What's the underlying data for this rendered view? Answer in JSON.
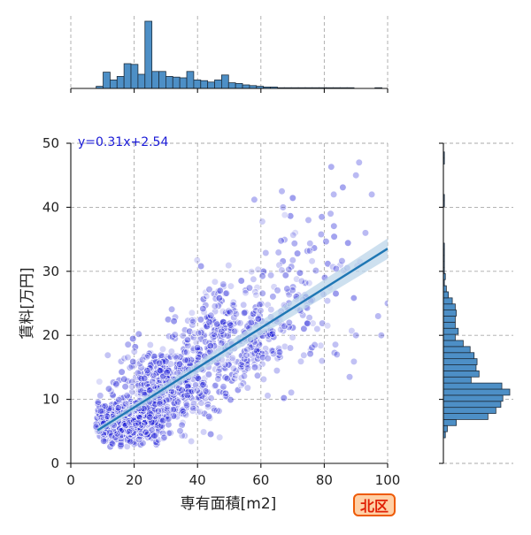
{
  "chart_data": {
    "type": "scatter",
    "subtype": "jointplot_with_regression",
    "xlabel": "専有面積[m2]",
    "ylabel": "賃料[万円]",
    "xlim": [
      0,
      100
    ],
    "ylim": [
      0,
      50
    ],
    "x_ticks": [
      0,
      20,
      40,
      60,
      80,
      100
    ],
    "y_ticks": [
      0,
      10,
      20,
      30,
      40,
      50
    ],
    "grid": true,
    "regression": {
      "label": "y=0.31x+2.54",
      "slope": 0.31,
      "intercept": 2.54,
      "x_range": [
        8.5,
        100
      ],
      "line_color": "#1f77b4",
      "ci_color": "#bcd6ea"
    },
    "scatter": {
      "color": "#1a1ad6",
      "approx_point_count": 1600,
      "clusters": [
        {
          "x_mean": 17,
          "x_sd": 5,
          "y_mean": 6.5,
          "y_sd": 1.6,
          "weight": 0.4
        },
        {
          "x_mean": 30,
          "x_sd": 7,
          "y_mean": 11.5,
          "y_sd": 3.2,
          "weight": 0.3
        },
        {
          "x_mean": 50,
          "x_sd": 9,
          "y_mean": 19,
          "y_sd": 4.5,
          "weight": 0.22
        },
        {
          "x_mean": 72,
          "x_sd": 10,
          "y_mean": 27,
          "y_sd": 6.5,
          "weight": 0.08
        }
      ],
      "outliers": [
        {
          "x": 91,
          "y": 47
        },
        {
          "x": 90,
          "y": 45
        },
        {
          "x": 95,
          "y": 42
        },
        {
          "x": 83,
          "y": 42
        },
        {
          "x": 75,
          "y": 38
        },
        {
          "x": 82,
          "y": 39
        },
        {
          "x": 67,
          "y": 40
        },
        {
          "x": 93,
          "y": 36
        },
        {
          "x": 100,
          "y": 25
        },
        {
          "x": 97,
          "y": 23
        },
        {
          "x": 88,
          "y": 13.5
        },
        {
          "x": 98,
          "y": 20
        },
        {
          "x": 90,
          "y": 20
        },
        {
          "x": 77,
          "y": 18.5
        },
        {
          "x": 84,
          "y": 17
        }
      ]
    },
    "x_histogram": {
      "bin_start": 8,
      "bin_width": 2.2,
      "counts": [
        3,
        23,
        12,
        17,
        35,
        34,
        20,
        95,
        24,
        24,
        17,
        16,
        15,
        24,
        12,
        11,
        9,
        12,
        19,
        8,
        7,
        5,
        4,
        3,
        2,
        2,
        1,
        1,
        1,
        1,
        1,
        1,
        1,
        1,
        1,
        1,
        1,
        0,
        0,
        0,
        1
      ]
    },
    "y_histogram": {
      "bin_start": 4,
      "bin_width": 0.95,
      "counts": [
        2,
        4,
        13,
        45,
        53,
        58,
        60,
        67,
        59,
        28,
        36,
        33,
        34,
        31,
        27,
        20,
        12,
        15,
        12,
        12,
        13,
        12,
        9,
        5,
        3,
        1,
        2,
        1,
        1,
        1,
        1,
        1,
        0,
        0,
        0,
        0,
        0,
        0,
        1,
        1,
        0,
        0,
        0,
        0,
        0,
        1,
        1,
        0,
        0,
        0,
        0,
        0
      ]
    },
    "region_label": "北区"
  }
}
